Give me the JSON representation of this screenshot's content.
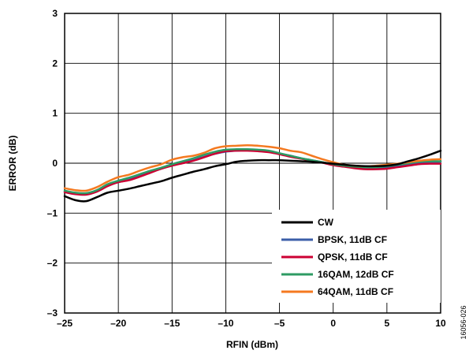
{
  "chart_data": {
    "type": "line",
    "xlabel": "RFIN (dBm)",
    "ylabel": "ERROR (dB)",
    "xlim": [
      -25,
      10
    ],
    "ylim": [
      -3,
      3
    ],
    "x_ticks": [
      -25,
      -20,
      -15,
      -10,
      -5,
      0,
      5,
      10
    ],
    "y_ticks": [
      -3,
      -2,
      -1,
      0,
      1,
      2,
      3
    ],
    "x_tick_labels": [
      "–25",
      "–20",
      "–15",
      "–10",
      "–5",
      "0",
      "5",
      "10"
    ],
    "y_tick_labels": [
      "–3",
      "–2",
      "–1",
      "0",
      "1",
      "2",
      "3"
    ],
    "grid": true,
    "legend_position": "bottom-right",
    "figure_id": "16056-026",
    "series": [
      {
        "name": "CW",
        "color": "#000000",
        "x": [
          -25,
          -24,
          -23,
          -22,
          -21,
          -20,
          -19,
          -18,
          -17,
          -16,
          -15,
          -14,
          -13,
          -12,
          -11,
          -10,
          -9,
          -8,
          -7,
          -6,
          -5,
          -4,
          -3,
          -2,
          -1,
          0,
          1,
          2,
          3,
          4,
          5,
          6,
          7,
          8,
          9,
          10
        ],
        "y": [
          -0.66,
          -0.74,
          -0.76,
          -0.68,
          -0.59,
          -0.55,
          -0.51,
          -0.46,
          -0.41,
          -0.36,
          -0.29,
          -0.23,
          -0.17,
          -0.12,
          -0.06,
          -0.02,
          0.03,
          0.05,
          0.06,
          0.06,
          0.06,
          0.05,
          0.04,
          0.03,
          0.01,
          -0.01,
          -0.03,
          -0.05,
          -0.06,
          -0.06,
          -0.05,
          -0.02,
          0.04,
          0.1,
          0.17,
          0.25
        ]
      },
      {
        "name": "BPSK, 11dB CF",
        "color": "#3b5ea8",
        "x": [
          -25,
          -24,
          -23,
          -22,
          -21,
          -20,
          -19,
          -18,
          -17,
          -16,
          -15,
          -14,
          -13,
          -12,
          -11,
          -10,
          -9,
          -8,
          -7,
          -6,
          -5,
          -4,
          -3,
          -2,
          -1,
          0,
          1,
          2,
          3,
          4,
          5,
          6,
          7,
          8,
          9,
          10
        ],
        "y": [
          -0.57,
          -0.6,
          -0.62,
          -0.56,
          -0.45,
          -0.38,
          -0.33,
          -0.25,
          -0.17,
          -0.11,
          -0.04,
          0.01,
          0.06,
          0.13,
          0.19,
          0.23,
          0.25,
          0.26,
          0.25,
          0.23,
          0.19,
          0.15,
          0.1,
          0.06,
          0.02,
          -0.03,
          -0.06,
          -0.09,
          -0.1,
          -0.1,
          -0.08,
          -0.05,
          -0.02,
          0.01,
          0.02,
          0.03
        ]
      },
      {
        "name": "QPSK, 11dB CF",
        "color": "#cc0033",
        "x": [
          -25,
          -24,
          -23,
          -22,
          -21,
          -20,
          -19,
          -18,
          -17,
          -16,
          -15,
          -14,
          -13,
          -12,
          -11,
          -10,
          -9,
          -8,
          -7,
          -6,
          -5,
          -4,
          -3,
          -2,
          -1,
          0,
          1,
          2,
          3,
          4,
          5,
          6,
          7,
          8,
          9,
          10
        ],
        "y": [
          -0.58,
          -0.62,
          -0.63,
          -0.57,
          -0.46,
          -0.38,
          -0.34,
          -0.27,
          -0.19,
          -0.11,
          -0.05,
          0.0,
          0.05,
          0.12,
          0.19,
          0.24,
          0.25,
          0.25,
          0.24,
          0.22,
          0.18,
          0.13,
          0.09,
          0.05,
          0.01,
          -0.04,
          -0.07,
          -0.1,
          -0.12,
          -0.12,
          -0.11,
          -0.08,
          -0.05,
          -0.02,
          -0.01,
          -0.01
        ]
      },
      {
        "name": "16QAM, 12dB CF",
        "color": "#2e9b63",
        "x": [
          -25,
          -24,
          -23,
          -22,
          -21,
          -20,
          -19,
          -18,
          -17,
          -16,
          -15,
          -14,
          -13,
          -12,
          -11,
          -10,
          -9,
          -8,
          -7,
          -6,
          -5,
          -4,
          -3,
          -2,
          -1,
          0,
          1,
          2,
          3,
          4,
          5,
          6,
          7,
          8,
          9,
          10
        ],
        "y": [
          -0.55,
          -0.59,
          -0.6,
          -0.54,
          -0.42,
          -0.35,
          -0.29,
          -0.22,
          -0.15,
          -0.09,
          -0.02,
          0.04,
          0.1,
          0.17,
          0.23,
          0.27,
          0.28,
          0.28,
          0.27,
          0.25,
          0.2,
          0.15,
          0.1,
          0.06,
          0.02,
          -0.02,
          -0.05,
          -0.07,
          -0.08,
          -0.08,
          -0.06,
          -0.03,
          0.0,
          0.03,
          0.04,
          0.04
        ]
      },
      {
        "name": "64QAM, 11dB CF",
        "color": "#f47920",
        "x": [
          -25,
          -24,
          -23,
          -22,
          -21,
          -20,
          -19,
          -18,
          -17,
          -16,
          -15,
          -14,
          -13,
          -12,
          -11,
          -10,
          -9,
          -8,
          -7,
          -6,
          -5,
          -4,
          -3,
          -2,
          -1,
          0,
          1,
          2,
          3,
          4,
          5,
          6,
          7,
          8,
          9,
          10
        ],
        "y": [
          -0.5,
          -0.54,
          -0.55,
          -0.48,
          -0.37,
          -0.28,
          -0.23,
          -0.15,
          -0.08,
          -0.02,
          0.07,
          0.12,
          0.15,
          0.21,
          0.3,
          0.34,
          0.35,
          0.36,
          0.35,
          0.33,
          0.3,
          0.25,
          0.22,
          0.15,
          0.08,
          0.02,
          -0.03,
          -0.05,
          -0.06,
          -0.05,
          -0.03,
          -0.01,
          0.02,
          0.05,
          0.07,
          0.08
        ]
      }
    ]
  }
}
